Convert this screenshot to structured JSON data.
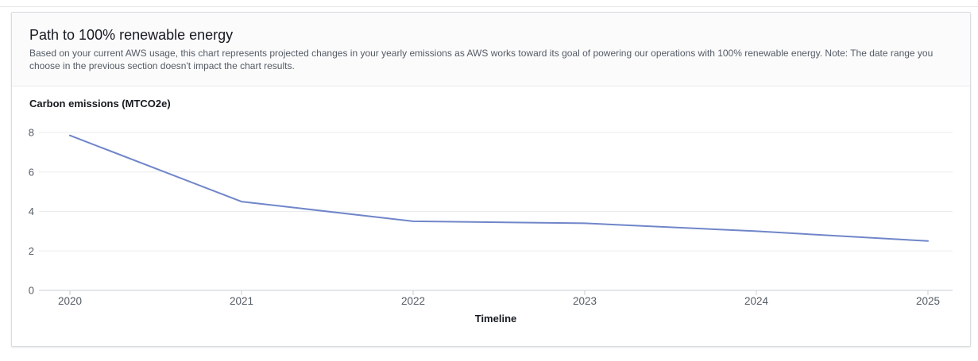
{
  "card": {
    "header": {
      "title": "Path to 100% renewable energy",
      "description": "Based on your current AWS usage, this chart represents projected changes in your yearly emissions as AWS works toward its goal of powering our operations with 100% renewable energy. Note: The date range you choose in the previous section doesn't impact the chart results."
    }
  },
  "chart_data": {
    "type": "line",
    "title": "Carbon emissions (MTCO2e)",
    "xlabel": "Timeline",
    "ylabel": "Carbon emissions (MTCO2e)",
    "categories": [
      "2020",
      "2021",
      "2022",
      "2023",
      "2024",
      "2025"
    ],
    "values": [
      7.85,
      4.5,
      3.5,
      3.4,
      3.0,
      2.5
    ],
    "ylim": [
      0,
      8
    ],
    "yticks": [
      0,
      2,
      4,
      6,
      8
    ],
    "grid": true,
    "legend": "none",
    "line_color": "#7086c9",
    "gridline_color": "#e9ebed",
    "axis_color": "#c9cfd4",
    "tick_label_color": "#545b64",
    "axis_title_color": "#16191f"
  }
}
